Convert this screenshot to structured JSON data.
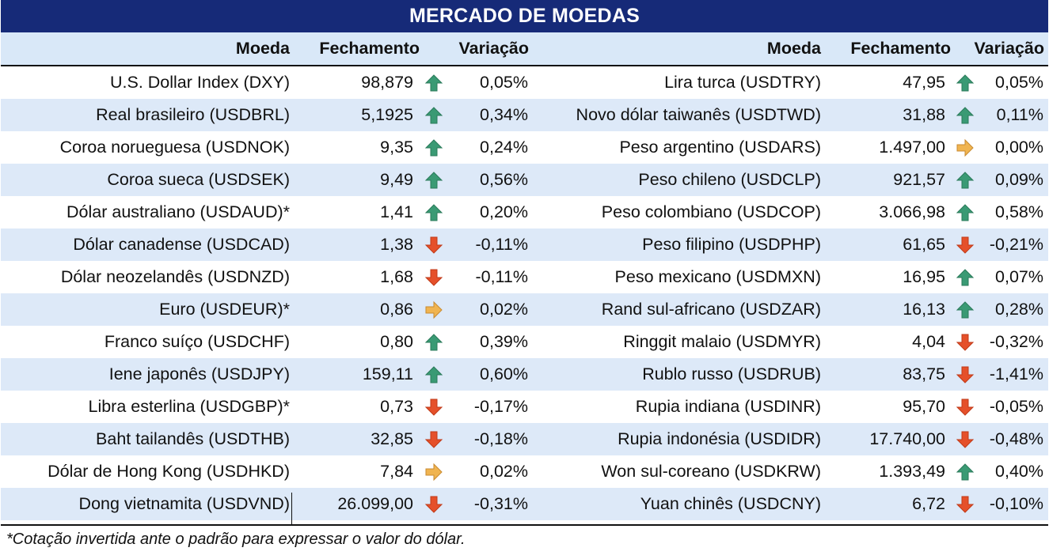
{
  "title": "MERCADO DE MOEDAS",
  "headers": {
    "moeda": "Moeda",
    "fechamento": "Fechamento",
    "variacao": "Variação"
  },
  "colors": {
    "title_bg": "#162a78",
    "header_bg": "#d9e8f8",
    "alt_row_bg": "#dde9f8",
    "arrow_up": "#3a9a74",
    "arrow_down": "#e5502a",
    "arrow_flat": "#f0b450"
  },
  "left_rows": [
    {
      "name": "U.S. Dollar Index (DXY)",
      "close": "98,879",
      "trend": "up",
      "var": "0,05%"
    },
    {
      "name": "Real brasileiro (USDBRL)",
      "close": "5,1925",
      "trend": "up",
      "var": "0,34%"
    },
    {
      "name": "Coroa norueguesa (USDNOK)",
      "close": "9,35",
      "trend": "up",
      "var": "0,24%"
    },
    {
      "name": "Coroa sueca (USDSEK)",
      "close": "9,49",
      "trend": "up",
      "var": "0,56%"
    },
    {
      "name": "Dólar australiano (USDAUD)*",
      "close": "1,41",
      "trend": "up",
      "var": "0,20%"
    },
    {
      "name": "Dólar canadense (USDCAD)",
      "close": "1,38",
      "trend": "down",
      "var": "-0,11%"
    },
    {
      "name": "Dólar neozelandês (USDNZD)",
      "close": "1,68",
      "trend": "down",
      "var": "-0,11%"
    },
    {
      "name": "Euro (USDEUR)*",
      "close": "0,86",
      "trend": "flat",
      "var": "0,02%"
    },
    {
      "name": "Franco suíço (USDCHF)",
      "close": "0,80",
      "trend": "up",
      "var": "0,39%"
    },
    {
      "name": "Iene japonês (USDJPY)",
      "close": "159,11",
      "trend": "up",
      "var": "0,60%"
    },
    {
      "name": "Libra esterlina (USDGBP)*",
      "close": "0,73",
      "trend": "down",
      "var": "-0,17%"
    },
    {
      "name": "Baht tailandês (USDTHB)",
      "close": "32,85",
      "trend": "down",
      "var": "-0,18%"
    },
    {
      "name": "Dólar de Hong Kong (USDHKD)",
      "close": "7,84",
      "trend": "flat",
      "var": "0,02%"
    },
    {
      "name": "Dong vietnamita (USDVND)",
      "close": "26.099,00",
      "trend": "down",
      "var": "-0,31%"
    }
  ],
  "right_rows": [
    {
      "name": "Lira turca (USDTRY)",
      "close": "47,95",
      "trend": "up",
      "var": "0,05%"
    },
    {
      "name": "Novo dólar taiwanês (USDTWD)",
      "close": "31,88",
      "trend": "up",
      "var": "0,11%"
    },
    {
      "name": "Peso argentino (USDARS)",
      "close": "1.497,00",
      "trend": "flat",
      "var": "0,00%"
    },
    {
      "name": "Peso chileno (USDCLP)",
      "close": "921,57",
      "trend": "up",
      "var": "0,09%"
    },
    {
      "name": "Peso colombiano (USDCOP)",
      "close": "3.066,98",
      "trend": "up",
      "var": "0,58%"
    },
    {
      "name": "Peso filipino (USDPHP)",
      "close": "61,65",
      "trend": "down",
      "var": "-0,21%"
    },
    {
      "name": "Peso mexicano (USDMXN)",
      "close": "16,95",
      "trend": "up",
      "var": "0,07%"
    },
    {
      "name": "Rand sul-africano (USDZAR)",
      "close": "16,13",
      "trend": "up",
      "var": "0,28%"
    },
    {
      "name": "Ringgit malaio (USDMYR)",
      "close": "4,04",
      "trend": "down",
      "var": "-0,32%"
    },
    {
      "name": "Rublo russo (USDRUB)",
      "close": "83,75",
      "trend": "down",
      "var": "-1,41%"
    },
    {
      "name": "Rupia indiana (USDINR)",
      "close": "95,70",
      "trend": "down",
      "var": "-0,05%"
    },
    {
      "name": "Rupia indonésia (USDIDR)",
      "close": "17.740,00",
      "trend": "down",
      "var": "-0,48%"
    },
    {
      "name": "Won sul-coreano (USDKRW)",
      "close": "1.393,49",
      "trend": "up",
      "var": "0,40%"
    },
    {
      "name": "Yuan chinês (USDCNY)",
      "close": "6,72",
      "trend": "down",
      "var": "-0,10%"
    }
  ],
  "footnote": "*Cotação invertida ante o padrão para expressar o valor do dólar."
}
